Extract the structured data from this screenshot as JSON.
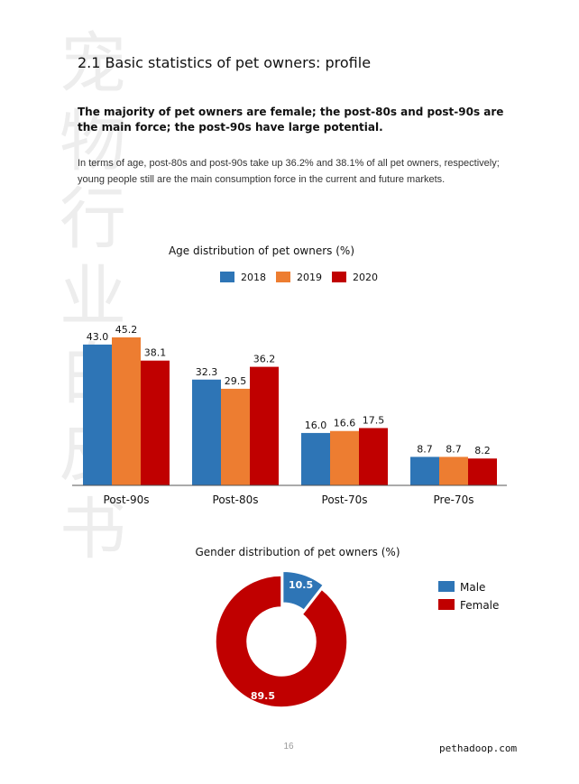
{
  "watermark": {
    "chars": [
      "宠",
      "物",
      "行",
      "业",
      "白",
      "皮",
      "书"
    ]
  },
  "section_title": "2.1 Basic statistics of pet owners: profile",
  "lead_text": "The majority of pet owners are female; the post-80s and post-90s are the main force; the post-90s have large potential.",
  "body_text": "In terms of age, post-80s and post-90s take up 36.2% and 38.1% of all pet owners, respectively; young people still are the main consumption force in the current and future markets.",
  "chart_data": [
    {
      "type": "bar",
      "title": "Age distribution of pet owners (%)",
      "categories": [
        "Post-90s",
        "Post-80s",
        "Post-70s",
        "Pre-70s"
      ],
      "series": [
        {
          "name": "2018",
          "color": "#2E75B6",
          "values": [
            43.0,
            32.3,
            16.0,
            8.7
          ],
          "labels": [
            "43.0",
            "32.3",
            "16.0",
            "8.7"
          ]
        },
        {
          "name": "2019",
          "color": "#ED7D31",
          "values": [
            45.2,
            29.5,
            16.6,
            8.7
          ],
          "labels": [
            "45.2",
            "29.5",
            "16.6",
            "8.7"
          ]
        },
        {
          "name": "2020",
          "color": "#C00000",
          "values": [
            38.1,
            36.2,
            17.5,
            8.2
          ],
          "labels": [
            "38.1",
            "36.2",
            "17.5",
            "8.2"
          ]
        }
      ],
      "ylim": [
        0,
        50
      ],
      "grid": false,
      "legend": "top"
    },
    {
      "type": "pie",
      "title": "Gender distribution of pet owners (%)",
      "slices": [
        {
          "name": "Male",
          "value": 10.5,
          "label": "10.5",
          "color": "#2E75B6"
        },
        {
          "name": "Female",
          "value": 89.5,
          "label": "89.5",
          "color": "#C00000"
        }
      ],
      "donut": true,
      "legend": "right"
    }
  ],
  "page_number": "16",
  "website": "pethadoop.com"
}
